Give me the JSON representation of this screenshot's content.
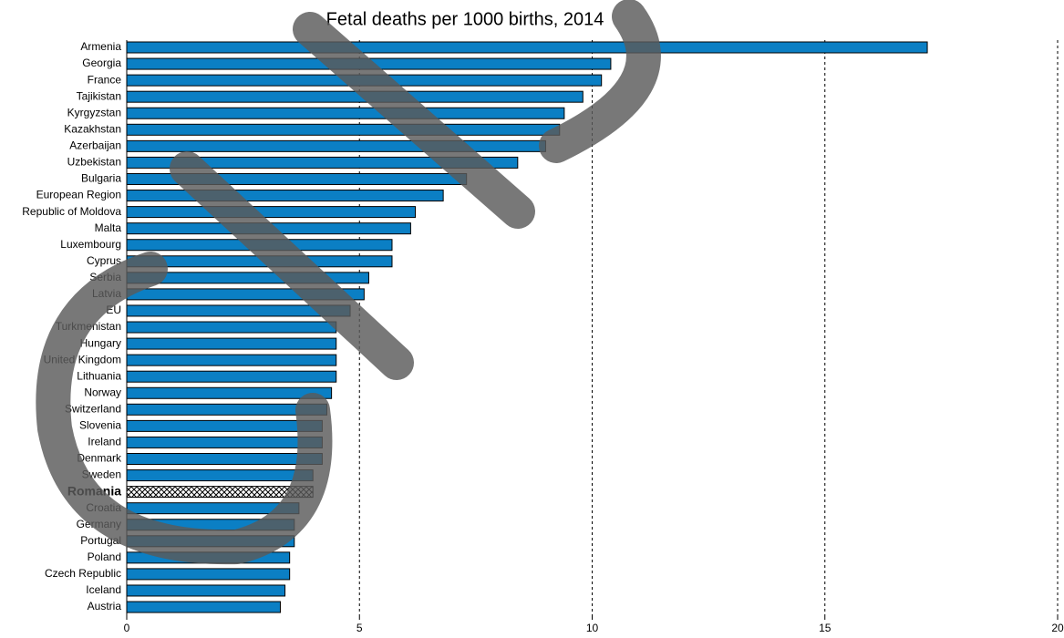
{
  "chart_data": {
    "type": "bar",
    "orientation": "horizontal",
    "title": "Fetal deaths per 1000 births, 2014",
    "categories": [
      "Armenia",
      "Georgia",
      "France",
      "Tajikistan",
      "Kyrgyzstan",
      "Kazakhstan",
      "Azerbaijan",
      "Uzbekistan",
      "Bulgaria",
      "European Region",
      "Republic of Moldova",
      "Malta",
      "Luxembourg",
      "Cyprus",
      "Serbia",
      "Latvia",
      "EU",
      "Turkmenistan",
      "Hungary",
      "United Kingdom",
      "Lithuania",
      "Norway",
      "Switzerland",
      "Slovenia",
      "Ireland",
      "Denmark",
      "Sweden",
      "Romania",
      "Croatia",
      "Germany",
      "Portugal",
      "Poland",
      "Czech Republic",
      "Iceland",
      "Austria"
    ],
    "values": [
      17.2,
      10.4,
      10.2,
      9.8,
      9.4,
      9.3,
      9.0,
      8.4,
      7.3,
      6.8,
      6.2,
      6.1,
      5.7,
      5.7,
      5.2,
      5.1,
      4.8,
      4.5,
      4.5,
      4.5,
      4.5,
      4.4,
      4.3,
      4.2,
      4.2,
      4.2,
      4.0,
      4.0,
      3.7,
      3.6,
      3.6,
      3.5,
      3.5,
      3.4,
      3.3
    ],
    "color": "#0b7fc4",
    "highlight": "Romania",
    "xlim": [
      0,
      20
    ],
    "xticks": [
      0,
      5,
      10,
      15,
      20
    ],
    "grid": true
  }
}
